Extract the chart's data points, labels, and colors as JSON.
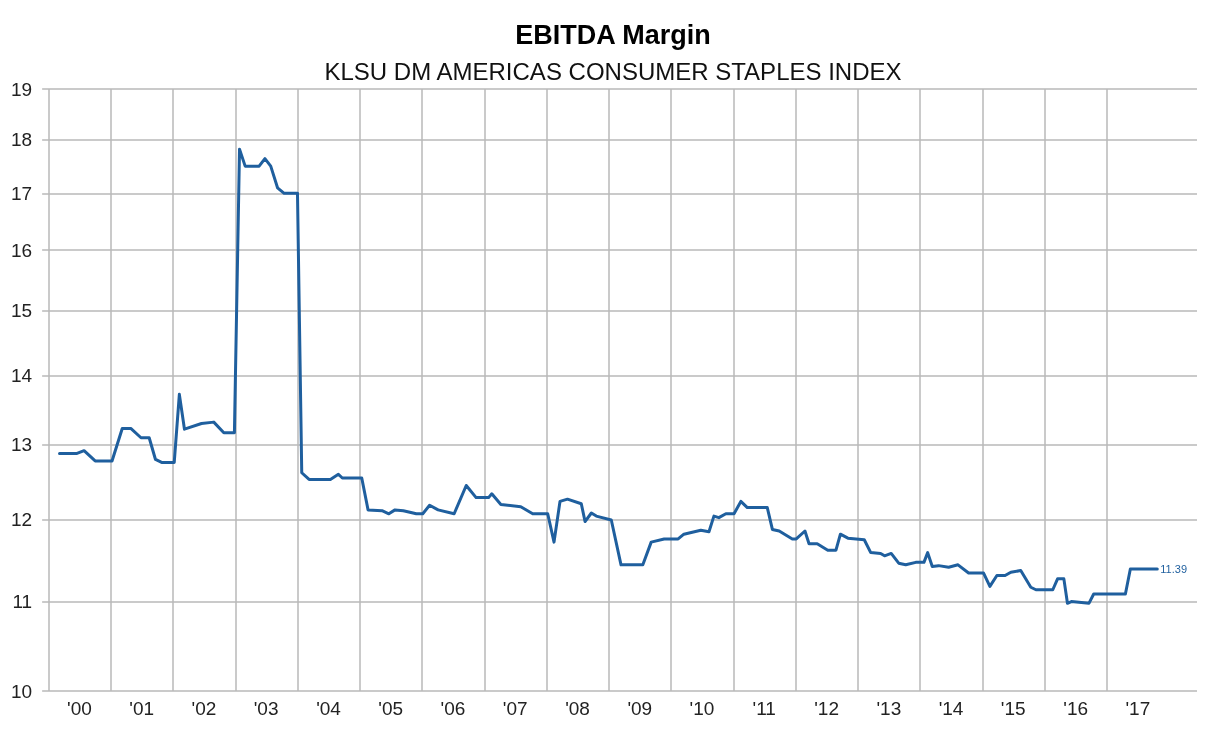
{
  "chart_data": {
    "type": "line",
    "title": "EBITDA Margin",
    "subtitle": "KLSU DM AMERICAS CONSUMER STAPLES INDEX",
    "series": [
      {
        "color": "#1f5f9e",
        "x": [
          "2000-03-06",
          "2000-06-13",
          "2000-07-28",
          "2000-10-01",
          "2001-01-08",
          "2001-03-09",
          "2001-04-28",
          "2001-06-27",
          "2001-08-14",
          "2001-09-20",
          "2001-10-26",
          "2002-01-08",
          "2002-02-07",
          "2002-03-09",
          "2002-06-17",
          "2002-08-28",
          "2002-10-26",
          "2002-12-27",
          "2003-01-26",
          "2003-02-28",
          "2003-05-21",
          "2003-06-24",
          "2003-07-28",
          "2003-09-06",
          "2003-10-15",
          "2004-01-01",
          "2004-01-26",
          "2004-03-09",
          "2004-07-12",
          "2004-08-28",
          "2004-09-20",
          "2005-01-12",
          "2005-02-18",
          "2005-05-11",
          "2005-06-20",
          "2005-07-26",
          "2005-09-13",
          "2005-11-28",
          "2006-01-05",
          "2006-02-14",
          "2006-04-05",
          "2006-07-08",
          "2006-09-17",
          "2006-11-14",
          "2007-01-26",
          "2007-02-14",
          "2007-04-08",
          "2007-08-03",
          "2007-10-12",
          "2008-01-08",
          "2008-02-14",
          "2008-03-20",
          "2008-05-03",
          "2008-07-23",
          "2008-08-14",
          "2008-09-20",
          "2008-10-19",
          "2009-01-15",
          "2009-03-13",
          "2009-07-19",
          "2009-09-06",
          "2009-11-21",
          "2010-02-11",
          "2010-03-17",
          "2010-06-24",
          "2010-08-11",
          "2010-09-09",
          "2010-10-08",
          "2010-11-18",
          "2011-01-05",
          "2011-02-14",
          "2011-03-24",
          "2011-07-19",
          "2011-08-18",
          "2011-09-27",
          "2011-12-13",
          "2012-01-05",
          "2012-02-25",
          "2012-03-20",
          "2012-05-07",
          "2012-07-08",
          "2012-08-25",
          "2012-09-20",
          "2012-11-03",
          "2013-02-07",
          "2013-03-17",
          "2013-05-14",
          "2013-06-06",
          "2013-07-15",
          "2013-08-28",
          "2013-10-08",
          "2013-12-06",
          "2014-01-23",
          "2014-02-14",
          "2014-03-13",
          "2014-04-19",
          "2014-06-17",
          "2014-08-11",
          "2014-10-12",
          "2015-01-08",
          "2015-02-14",
          "2015-03-27",
          "2015-05-14",
          "2015-06-17",
          "2015-08-14",
          "2015-10-12",
          "2015-11-11",
          "2016-02-18",
          "2016-03-17",
          "2016-04-23",
          "2016-05-14",
          "2016-06-06",
          "2016-09-17",
          "2016-10-15",
          "2017-04-19",
          "2017-05-18",
          "2017-10-23"
        ],
        "values": [
          12.88,
          12.88,
          12.92,
          12.78,
          12.78,
          13.23,
          13.23,
          13.1,
          13.1,
          12.8,
          12.76,
          12.76,
          13.72,
          13.22,
          13.3,
          13.32,
          13.17,
          13.17,
          17.82,
          17.5,
          17.5,
          17.64,
          17.5,
          17.1,
          17.0,
          17.0,
          12.62,
          12.53,
          12.53,
          12.6,
          12.55,
          12.55,
          12.13,
          12.12,
          12.08,
          12.13,
          12.12,
          12.08,
          12.08,
          12.19,
          12.13,
          12.08,
          12.45,
          12.29,
          12.29,
          12.34,
          12.2,
          12.17,
          12.08,
          12.08,
          11.72,
          12.24,
          12.27,
          12.21,
          11.98,
          12.09,
          12.05,
          12.0,
          11.44,
          11.44,
          11.72,
          11.76,
          11.76,
          11.82,
          11.87,
          11.85,
          12.05,
          12.03,
          12.08,
          12.08,
          12.24,
          12.16,
          12.16,
          11.88,
          11.86,
          11.76,
          11.76,
          11.86,
          11.7,
          11.7,
          11.62,
          11.62,
          11.82,
          11.77,
          11.75,
          11.59,
          11.58,
          11.55,
          11.58,
          11.46,
          11.44,
          11.47,
          11.47,
          11.59,
          11.42,
          11.43,
          11.41,
          11.44,
          11.34,
          11.34,
          11.18,
          11.31,
          11.31,
          11.35,
          11.37,
          11.17,
          11.14,
          11.14,
          11.27,
          11.27,
          10.98,
          11.0,
          10.98,
          11.09,
          11.09,
          11.39,
          11.39
        ]
      }
    ],
    "annotations": [
      {
        "text": "11.39",
        "x": "2017-10-23",
        "y": 11.39
      }
    ],
    "xlim": [
      "1999-11-25",
      "2018-06-13"
    ],
    "xticks": [
      {
        "value": "2000-01-01",
        "label": null
      },
      {
        "value": "2000-07-01",
        "label": "'00"
      },
      {
        "value": "2001-01-01",
        "label": null
      },
      {
        "value": "2001-07-01",
        "label": "'01"
      },
      {
        "value": "2002-01-01",
        "label": null
      },
      {
        "value": "2002-07-01",
        "label": "'02"
      },
      {
        "value": "2003-01-01",
        "label": null
      },
      {
        "value": "2003-07-01",
        "label": "'03"
      },
      {
        "value": "2004-01-01",
        "label": null
      },
      {
        "value": "2004-07-01",
        "label": "'04"
      },
      {
        "value": "2005-01-01",
        "label": null
      },
      {
        "value": "2005-07-01",
        "label": "'05"
      },
      {
        "value": "2006-01-01",
        "label": null
      },
      {
        "value": "2006-07-01",
        "label": "'06"
      },
      {
        "value": "2007-01-01",
        "label": null
      },
      {
        "value": "2007-07-01",
        "label": "'07"
      },
      {
        "value": "2008-01-01",
        "label": null
      },
      {
        "value": "2008-07-01",
        "label": "'08"
      },
      {
        "value": "2009-01-01",
        "label": null
      },
      {
        "value": "2009-07-01",
        "label": "'09"
      },
      {
        "value": "2010-01-01",
        "label": null
      },
      {
        "value": "2010-07-01",
        "label": "'10"
      },
      {
        "value": "2011-01-01",
        "label": null
      },
      {
        "value": "2011-07-01",
        "label": "'11"
      },
      {
        "value": "2012-01-01",
        "label": null
      },
      {
        "value": "2012-07-01",
        "label": "'12"
      },
      {
        "value": "2013-01-01",
        "label": null
      },
      {
        "value": "2013-07-01",
        "label": "'13"
      },
      {
        "value": "2014-01-01",
        "label": null
      },
      {
        "value": "2014-07-01",
        "label": "'14"
      },
      {
        "value": "2015-01-01",
        "label": null
      },
      {
        "value": "2015-07-01",
        "label": "'15"
      },
      {
        "value": "2016-01-01",
        "label": null
      },
      {
        "value": "2016-07-01",
        "label": "'16"
      },
      {
        "value": "2017-01-01",
        "label": null
      },
      {
        "value": "2017-07-01",
        "label": "'17"
      }
    ],
    "ylim": [
      10,
      19
    ],
    "yticks": [
      10,
      11,
      12,
      13,
      14,
      15,
      16,
      17,
      18,
      19
    ],
    "log": "y",
    "grid": true,
    "marker": "none",
    "line_style": "solid"
  }
}
